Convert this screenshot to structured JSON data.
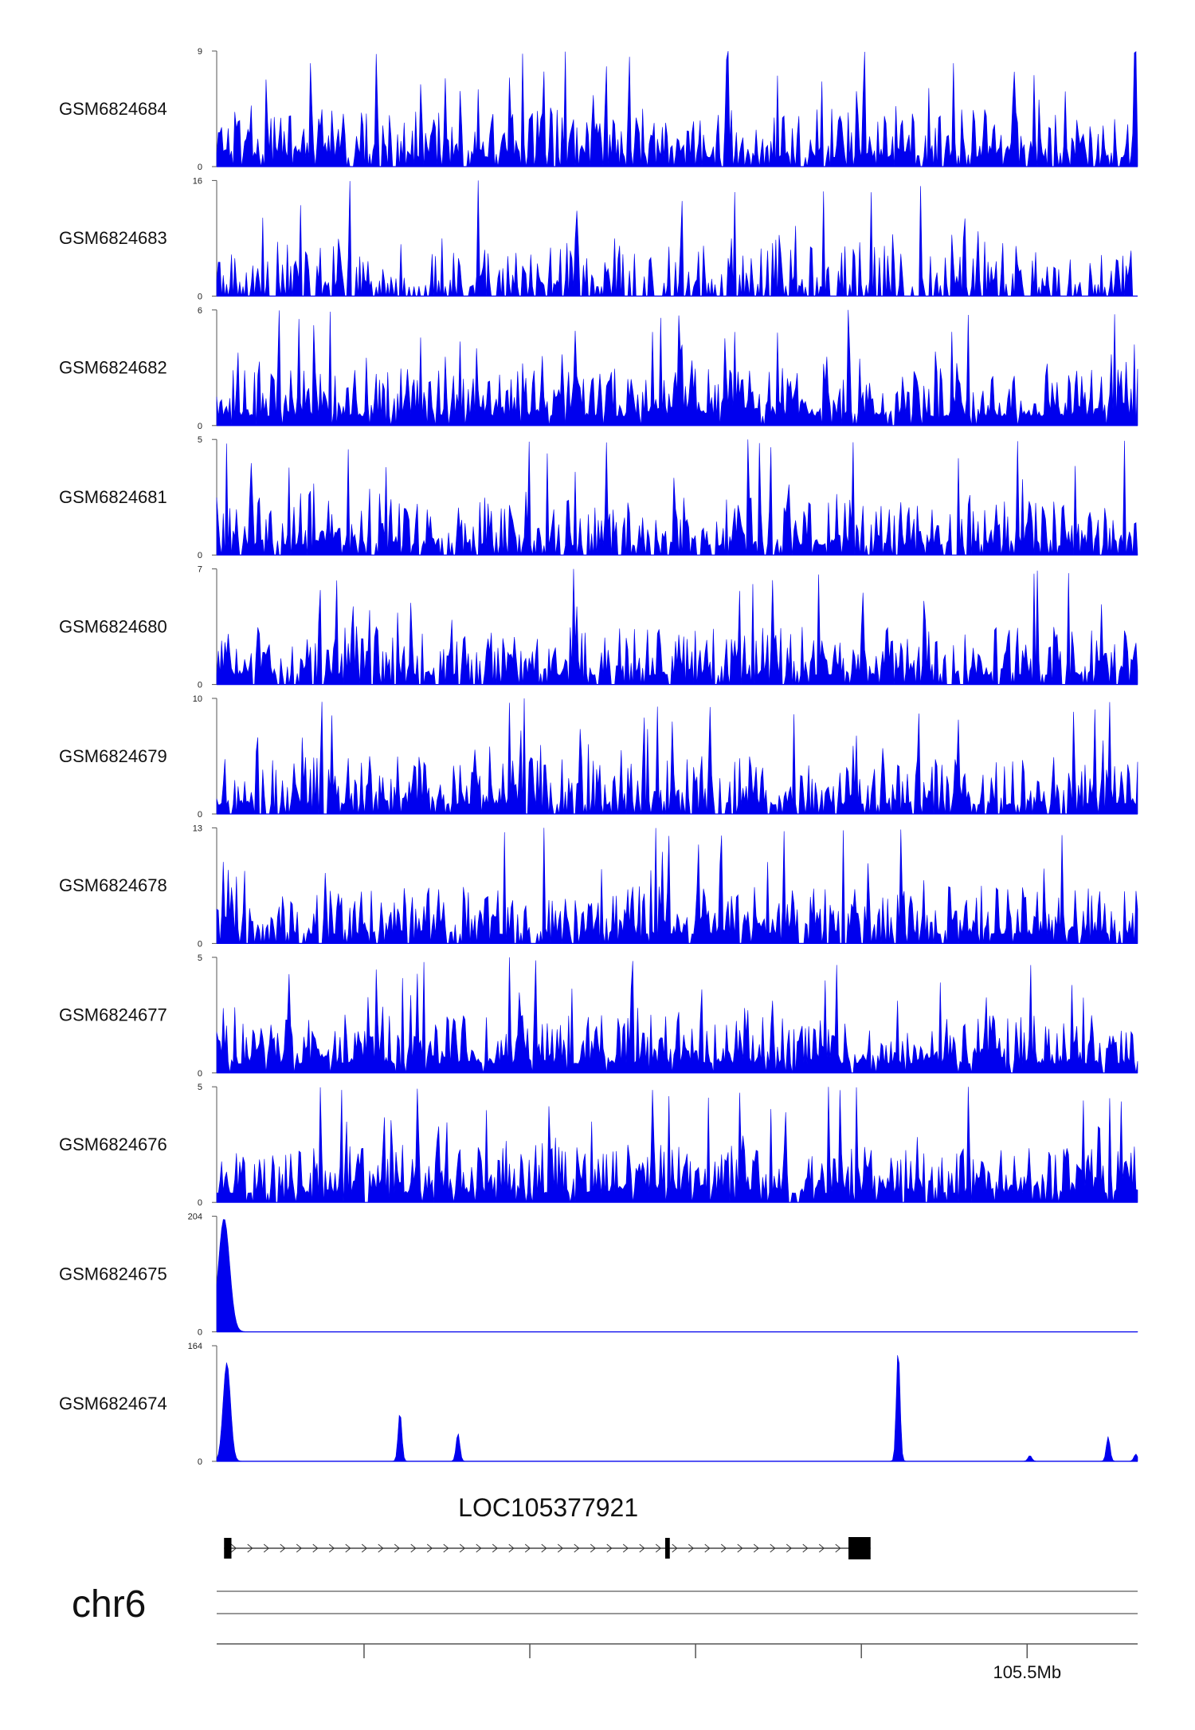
{
  "chart_data": {
    "type": "area",
    "color": "#0000ee",
    "tracks": [
      {
        "name": "GSM6824684",
        "ymax": 9,
        "ymin": 0,
        "pattern": "noise",
        "seed": 11
      },
      {
        "name": "GSM6824683",
        "ymax": 16,
        "ymin": 0,
        "pattern": "sparse",
        "seed": 23
      },
      {
        "name": "GSM6824682",
        "ymax": 6,
        "ymin": 0,
        "pattern": "dense",
        "seed": 37
      },
      {
        "name": "GSM6824681",
        "ymax": 5,
        "ymin": 0,
        "pattern": "noise",
        "seed": 41
      },
      {
        "name": "GSM6824680",
        "ymax": 7,
        "ymin": 0,
        "pattern": "noise",
        "seed": 53
      },
      {
        "name": "GSM6824679",
        "ymax": 10,
        "ymin": 0,
        "pattern": "noise",
        "seed": 67
      },
      {
        "name": "GSM6824678",
        "ymax": 13,
        "ymin": 0,
        "pattern": "noise",
        "seed": 71
      },
      {
        "name": "GSM6824677",
        "ymax": 5,
        "ymin": 0,
        "pattern": "dense",
        "seed": 83
      },
      {
        "name": "GSM6824676",
        "ymax": 5,
        "ymin": 0,
        "pattern": "dense",
        "seed": 97
      },
      {
        "name": "GSM6824675",
        "ymax": 204,
        "ymin": 0,
        "pattern": "peaks",
        "peaks": [
          {
            "x": 0.008,
            "v": 200,
            "w": 0.006
          }
        ]
      },
      {
        "name": "GSM6824674",
        "ymax": 164,
        "ymin": 0,
        "pattern": "peaks",
        "peaks": [
          {
            "x": 0.011,
            "v": 140,
            "w": 0.004
          },
          {
            "x": 0.199,
            "v": 70,
            "w": 0.002
          },
          {
            "x": 0.262,
            "v": 40,
            "w": 0.002
          },
          {
            "x": 0.74,
            "v": 160,
            "w": 0.002
          },
          {
            "x": 0.883,
            "v": 8,
            "w": 0.002
          },
          {
            "x": 0.968,
            "v": 35,
            "w": 0.002
          },
          {
            "x": 0.998,
            "v": 10,
            "w": 0.002
          }
        ]
      }
    ],
    "gene": {
      "name": "LOC105377921",
      "strand": "+",
      "start": 0.008,
      "end": 0.71,
      "exons": [
        {
          "start": 0.008,
          "end": 0.016
        },
        {
          "start": 0.487,
          "end": 0.492
        },
        {
          "start": 0.686,
          "end": 0.71
        }
      ]
    },
    "chromosome": "chr6",
    "axis": {
      "ticks": [
        0.16,
        0.34,
        0.52,
        0.7,
        0.88
      ],
      "labeled_tick": {
        "x": 0.88,
        "label": "105.5Mb"
      }
    }
  }
}
